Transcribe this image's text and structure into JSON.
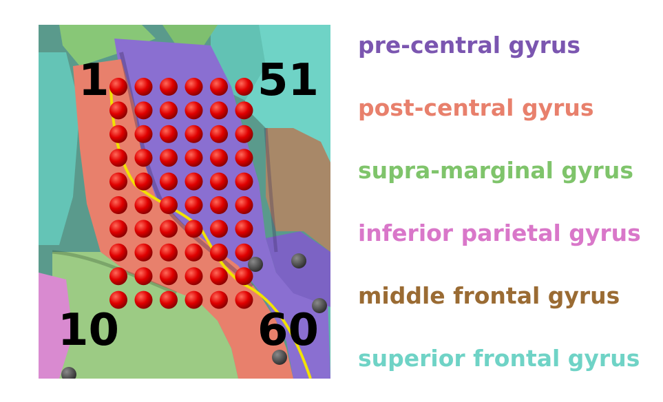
{
  "electrode_grid": {
    "columns": 6,
    "rows": 10,
    "electrode_color": "#e00000",
    "labels": {
      "top_left": "1",
      "top_right": "51",
      "bottom_left": "10",
      "bottom_right": "60"
    }
  },
  "central_sulcus_line_color": "#f2e200",
  "regions": [
    {
      "name": "pre-central gyrus",
      "color": "#7b56b0"
    },
    {
      "name": "post-central gyrus",
      "color": "#e8806c"
    },
    {
      "name": "supra-marginal gyrus",
      "color": "#7fc46b"
    },
    {
      "name": "inferior parietal gyrus",
      "color": "#d977c9"
    },
    {
      "name": "middle frontal gyrus",
      "color": "#9a6b33"
    },
    {
      "name": "superior frontal gyrus",
      "color": "#6fd3c6"
    }
  ]
}
